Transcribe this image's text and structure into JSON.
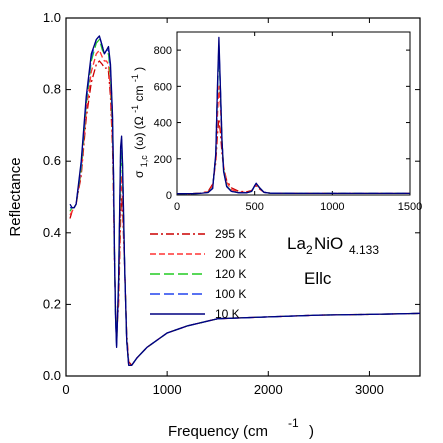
{
  "chart_data": [
    {
      "type": "line",
      "xlabel": "Frequency (cm",
      "xlabel_sup": "-1",
      "xlabel_close": ")",
      "ylabel": "Reflectance",
      "xlim": [
        0,
        3500
      ],
      "ylim": [
        0.0,
        1.0
      ],
      "xticks": [
        0,
        1000,
        2000,
        3000
      ],
      "yticks": [
        0.0,
        0.2,
        0.4,
        0.6,
        0.8,
        1.0
      ],
      "xtick_labels": [
        "0",
        "1000",
        "2000",
        "3000"
      ],
      "ytick_labels": [
        "0.0",
        "0.2",
        "0.4",
        "0.6",
        "0.8",
        "1.0"
      ],
      "grid": false,
      "legend_position": "center",
      "series": [
        {
          "name": "295 K",
          "color": "#cc0000",
          "dash": "dash-dot",
          "x": [
            40,
            60,
            80,
            100,
            150,
            200,
            250,
            300,
            330,
            360,
            380,
            400,
            420,
            440,
            460,
            470,
            480,
            490,
            500,
            520,
            540,
            550,
            560,
            580,
            600,
            620,
            650,
            700,
            800,
            1000,
            1200,
            1500,
            2000,
            2500,
            3000,
            3500
          ],
          "y": [
            0.44,
            0.46,
            0.47,
            0.48,
            0.56,
            0.72,
            0.82,
            0.87,
            0.88,
            0.87,
            0.86,
            0.86,
            0.85,
            0.78,
            0.64,
            0.5,
            0.32,
            0.18,
            0.12,
            0.2,
            0.44,
            0.5,
            0.46,
            0.3,
            0.12,
            0.04,
            0.03,
            0.05,
            0.08,
            0.12,
            0.14,
            0.16,
            0.165,
            0.17,
            0.172,
            0.175
          ]
        },
        {
          "name": "200 K",
          "color": "#ff3333",
          "dash": "dash",
          "x": [
            40,
            60,
            80,
            100,
            150,
            200,
            250,
            300,
            330,
            360,
            380,
            400,
            420,
            440,
            460,
            470,
            480,
            490,
            500,
            520,
            540,
            550,
            560,
            580,
            600,
            620,
            650,
            700,
            800,
            1000,
            1200,
            1500,
            2000,
            2500,
            3000,
            3500
          ],
          "y": [
            0.45,
            0.46,
            0.47,
            0.48,
            0.57,
            0.74,
            0.85,
            0.9,
            0.91,
            0.89,
            0.88,
            0.88,
            0.87,
            0.8,
            0.66,
            0.52,
            0.33,
            0.17,
            0.1,
            0.22,
            0.5,
            0.56,
            0.5,
            0.3,
            0.1,
            0.03,
            0.03,
            0.05,
            0.08,
            0.12,
            0.14,
            0.16,
            0.165,
            0.17,
            0.172,
            0.175
          ]
        },
        {
          "name": "120 K",
          "color": "#22cc22",
          "dash": "long-dash",
          "x": [
            40,
            60,
            80,
            100,
            150,
            200,
            250,
            300,
            330,
            360,
            380,
            400,
            420,
            440,
            460,
            470,
            480,
            490,
            500,
            520,
            540,
            550,
            560,
            580,
            600,
            620,
            650,
            700,
            800,
            1000,
            1200,
            1500,
            2000,
            2500,
            3000,
            3500
          ],
          "y": [
            0.46,
            0.47,
            0.47,
            0.48,
            0.58,
            0.76,
            0.88,
            0.93,
            0.94,
            0.91,
            0.9,
            0.9,
            0.9,
            0.84,
            0.7,
            0.55,
            0.34,
            0.16,
            0.09,
            0.25,
            0.58,
            0.63,
            0.55,
            0.3,
            0.1,
            0.03,
            0.03,
            0.05,
            0.08,
            0.12,
            0.14,
            0.16,
            0.165,
            0.17,
            0.172,
            0.175
          ]
        },
        {
          "name": "100 K",
          "color": "#2244ee",
          "dash": "long-dash",
          "x": [
            40,
            60,
            80,
            100,
            150,
            200,
            250,
            300,
            330,
            360,
            380,
            400,
            420,
            440,
            460,
            470,
            480,
            490,
            500,
            520,
            540,
            550,
            560,
            580,
            600,
            620,
            650,
            700,
            800,
            1000,
            1200,
            1500,
            2000,
            2500,
            3000,
            3500
          ],
          "y": [
            0.47,
            0.47,
            0.47,
            0.48,
            0.59,
            0.77,
            0.89,
            0.94,
            0.95,
            0.92,
            0.9,
            0.91,
            0.91,
            0.86,
            0.72,
            0.56,
            0.34,
            0.16,
            0.08,
            0.26,
            0.62,
            0.66,
            0.58,
            0.3,
            0.1,
            0.03,
            0.03,
            0.05,
            0.08,
            0.12,
            0.14,
            0.16,
            0.165,
            0.17,
            0.172,
            0.175
          ]
        },
        {
          "name": "10 K",
          "color": "#000080",
          "dash": "solid",
          "x": [
            40,
            60,
            80,
            100,
            150,
            200,
            250,
            300,
            330,
            360,
            380,
            400,
            420,
            440,
            460,
            470,
            480,
            490,
            500,
            520,
            540,
            550,
            560,
            580,
            600,
            620,
            650,
            700,
            800,
            1000,
            1200,
            1500,
            2000,
            2500,
            3000,
            3500
          ],
          "y": [
            0.48,
            0.47,
            0.47,
            0.48,
            0.6,
            0.78,
            0.9,
            0.94,
            0.95,
            0.92,
            0.9,
            0.91,
            0.92,
            0.87,
            0.73,
            0.57,
            0.34,
            0.16,
            0.08,
            0.27,
            0.64,
            0.67,
            0.59,
            0.3,
            0.1,
            0.03,
            0.03,
            0.05,
            0.08,
            0.12,
            0.14,
            0.16,
            0.165,
            0.17,
            0.172,
            0.175
          ]
        }
      ],
      "annotations": {
        "formula": "La",
        "formula_sub1": "2",
        "formula_mid": "NiO",
        "formula_sub2": "4.133",
        "polarization": "Ellc"
      }
    },
    {
      "type": "line",
      "inset": true,
      "ylabel": "σ",
      "ylabel_sub": "1,c",
      "ylabel_rest": "(ω)  (Ω",
      "ylabel_sup1": "-1",
      "ylabel_mid": "cm",
      "ylabel_sup2": "-1",
      "ylabel_close": ")",
      "xlim": [
        0,
        1500
      ],
      "ylim": [
        0,
        900
      ],
      "xticks": [
        0,
        500,
        1000,
        1500
      ],
      "yticks": [
        0,
        200,
        400,
        600,
        800
      ],
      "xtick_labels": [
        "0",
        "500",
        "1000",
        "1500"
      ],
      "ytick_labels": [
        "0",
        "200",
        "400",
        "600",
        "800"
      ],
      "series": [
        {
          "name": "295 K",
          "color": "#cc0000",
          "dash": "dash-dot",
          "x": [
            0,
            100,
            150,
            200,
            230,
            250,
            260,
            270,
            280,
            290,
            300,
            320,
            350,
            400,
            450,
            480,
            500,
            510,
            530,
            560,
            600,
            800,
            1000,
            1200,
            1500
          ],
          "y": [
            8,
            8,
            10,
            20,
            60,
            180,
            330,
            420,
            340,
            230,
            150,
            80,
            40,
            20,
            18,
            25,
            45,
            50,
            35,
            15,
            10,
            9,
            9,
            9,
            9
          ]
        },
        {
          "name": "200 K",
          "color": "#ff3333",
          "dash": "dash",
          "x": [
            0,
            100,
            150,
            200,
            230,
            250,
            260,
            270,
            280,
            290,
            300,
            320,
            350,
            400,
            450,
            480,
            500,
            510,
            530,
            560,
            600,
            800,
            1000,
            1200,
            1500
          ],
          "y": [
            8,
            8,
            10,
            18,
            50,
            200,
            430,
            600,
            480,
            290,
            160,
            70,
            30,
            15,
            14,
            22,
            48,
            58,
            40,
            15,
            10,
            9,
            9,
            9,
            9
          ]
        },
        {
          "name": "120 K",
          "color": "#22cc22",
          "dash": "long-dash",
          "x": [
            0,
            100,
            150,
            200,
            230,
            250,
            260,
            270,
            280,
            290,
            300,
            320,
            350,
            400,
            450,
            480,
            500,
            510,
            530,
            560,
            600,
            800,
            1000,
            1200,
            1500
          ],
          "y": [
            8,
            8,
            9,
            15,
            40,
            220,
            550,
            800,
            560,
            300,
            140,
            50,
            22,
            12,
            12,
            20,
            50,
            62,
            42,
            15,
            10,
            9,
            9,
            9,
            9
          ]
        },
        {
          "name": "100 K",
          "color": "#2244ee",
          "dash": "long-dash",
          "x": [
            0,
            100,
            150,
            200,
            230,
            250,
            260,
            270,
            280,
            290,
            300,
            320,
            350,
            400,
            450,
            480,
            500,
            510,
            530,
            560,
            600,
            800,
            1000,
            1200,
            1500
          ],
          "y": [
            8,
            8,
            9,
            14,
            38,
            225,
            570,
            830,
            570,
            300,
            135,
            48,
            20,
            12,
            12,
            20,
            50,
            63,
            42,
            15,
            10,
            9,
            9,
            9,
            9
          ]
        },
        {
          "name": "10 K",
          "color": "#000080",
          "dash": "solid",
          "x": [
            0,
            100,
            150,
            200,
            230,
            250,
            260,
            270,
            280,
            290,
            300,
            320,
            350,
            400,
            450,
            480,
            500,
            510,
            530,
            560,
            600,
            800,
            1000,
            1200,
            1500
          ],
          "y": [
            8,
            8,
            9,
            14,
            36,
            230,
            590,
            870,
            580,
            300,
            130,
            46,
            20,
            12,
            12,
            20,
            52,
            65,
            42,
            15,
            10,
            9,
            9,
            9,
            9
          ]
        }
      ]
    }
  ]
}
